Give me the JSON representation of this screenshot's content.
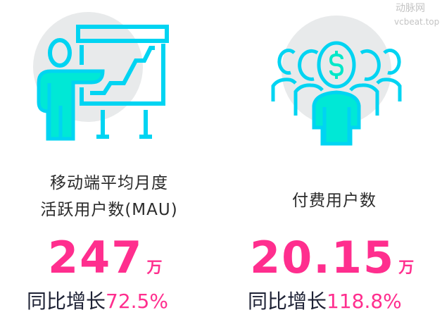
{
  "colors": {
    "accent": "#ff2e8e",
    "icon_stroke": "#00d4f2",
    "icon_fill": "#00e8d6",
    "circle": "#e8eaeb",
    "text": "#2b2b2b"
  },
  "left": {
    "icon": "presentation-chart-icon",
    "label_line1": "移动端平均月度",
    "label_line2": "活跃用户数(MAU)",
    "value": "247",
    "unit": "万",
    "growth_label": "同比增长",
    "growth_value": "72.5%"
  },
  "right": {
    "icon": "paying-users-icon",
    "label": "付费用户数",
    "value": "20.15",
    "unit": "万",
    "growth_label": "同比增长",
    "growth_value": "118.8%"
  },
  "watermark": {
    "text1": "动脉网",
    "text2": "vcbeat.top"
  }
}
